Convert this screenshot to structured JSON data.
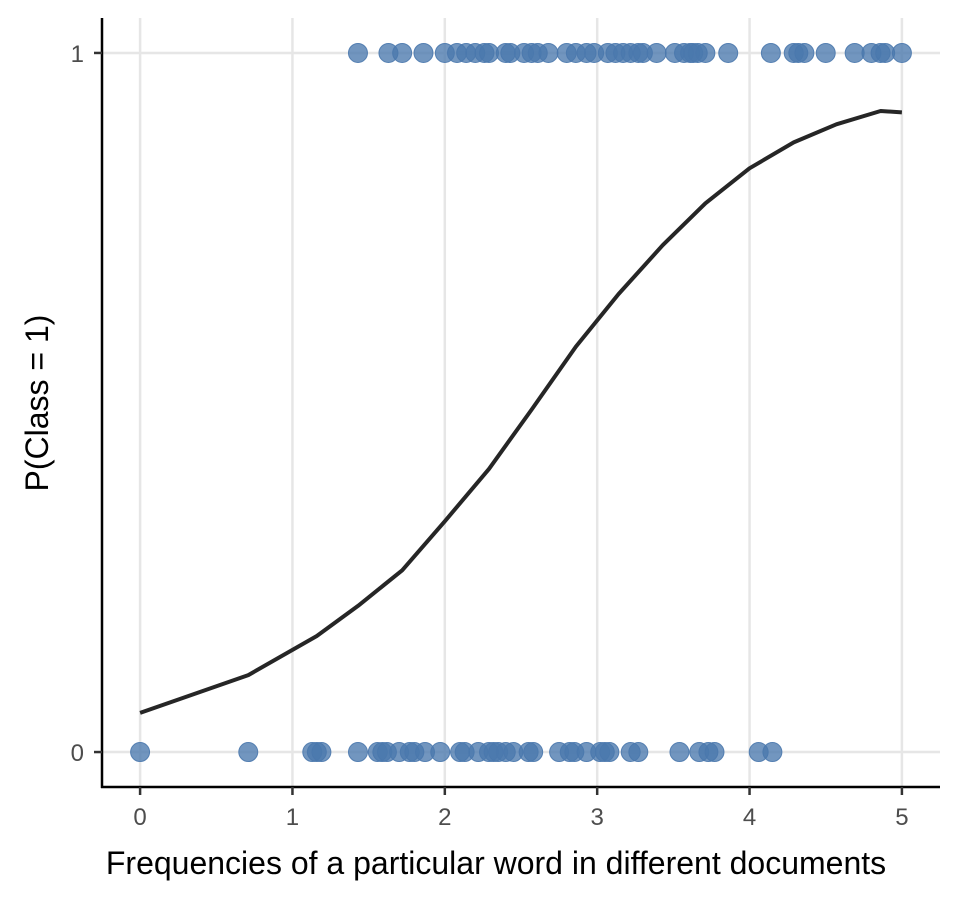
{
  "chart_data": {
    "type": "scatter",
    "title": "",
    "xlabel": "Frequencies of a particular word in different documents",
    "ylabel": "P(Class = 1)",
    "xlim": [
      -0.25,
      5.25
    ],
    "ylim": [
      -0.05,
      1.05
    ],
    "x_ticks": [
      0,
      1,
      2,
      3,
      4,
      5
    ],
    "y_ticks": [
      0,
      1
    ],
    "grid": "major gridlines on",
    "legend": "none",
    "colors": {
      "points": "#4a78ad",
      "curve": "#262626",
      "grid": "#e6e6e6",
      "axis": "#000000"
    },
    "series": [
      {
        "kind": "points",
        "y": 1,
        "x": [
          1.43,
          1.63,
          1.72,
          1.86,
          2.0,
          2.08,
          2.14,
          2.2,
          2.26,
          2.29,
          2.4,
          2.43,
          2.52,
          2.57,
          2.61,
          2.68,
          2.8,
          2.86,
          2.93,
          2.98,
          3.07,
          3.12,
          3.17,
          3.22,
          3.27,
          3.3,
          3.39,
          3.51,
          3.57,
          3.61,
          3.63,
          3.66,
          3.71,
          3.86,
          4.14,
          4.29,
          4.32,
          4.36,
          4.5,
          4.69,
          4.8,
          4.86,
          4.89,
          5.0
        ]
      },
      {
        "kind": "points",
        "y": 0,
        "x": [
          0.0,
          0.71,
          1.13,
          1.16,
          1.19,
          1.43,
          1.56,
          1.59,
          1.62,
          1.7,
          1.77,
          1.8,
          1.87,
          1.97,
          2.1,
          2.13,
          2.22,
          2.29,
          2.32,
          2.35,
          2.4,
          2.45,
          2.55,
          2.58,
          2.75,
          2.82,
          2.85,
          2.93,
          3.02,
          3.05,
          3.08,
          3.22,
          3.27,
          3.54,
          3.67,
          3.73,
          3.77,
          4.06,
          4.15
        ]
      },
      {
        "kind": "curve",
        "label": "",
        "x": [
          0,
          0.71,
          1.16,
          1.43,
          1.72,
          2.0,
          2.29,
          2.57,
          2.86,
          3.14,
          3.43,
          3.71,
          4.0,
          4.29,
          4.57,
          4.86,
          5.0
        ],
        "y": [
          0.056,
          0.11,
          0.166,
          0.209,
          0.26,
          0.33,
          0.405,
          0.49,
          0.58,
          0.655,
          0.725,
          0.785,
          0.835,
          0.872,
          0.898,
          0.917,
          0.915
        ]
      }
    ]
  }
}
